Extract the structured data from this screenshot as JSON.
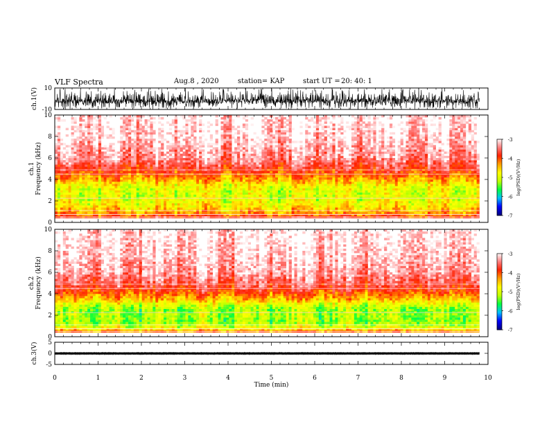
{
  "header": {
    "title": "VLF Spectra",
    "date": "Aug.8 , 2020",
    "station": "station= KAP",
    "start_label": "start UT =",
    "start_value": "20: 40: 1"
  },
  "colors": {
    "background": "#ffffff",
    "waveform": "#000000",
    "colormap": [
      "#000080",
      "#0000ff",
      "#00c0ff",
      "#00ff40",
      "#c0ff00",
      "#ffff00",
      "#ffa000",
      "#ff2000",
      "#ff8080",
      "#ffffff"
    ]
  },
  "chart_data": [
    {
      "type": "line",
      "panel": "ch1-waveform",
      "ylabel": "ch.1(V)",
      "ylim": [
        -10,
        10
      ],
      "y_ticks": [
        "10",
        "-10"
      ],
      "xlim": [
        0,
        10
      ],
      "x_unit": "min",
      "series": [
        {
          "x_range": [
            0,
            9.8
          ],
          "envelope_min": -10,
          "envelope_max": 10,
          "typical_min": -9,
          "typical_max": 8
        }
      ]
    },
    {
      "type": "heatmap",
      "panel": "ch1-spectrogram",
      "ylabel": "ch.1 Frequency (kHz)",
      "ylim": [
        0,
        10
      ],
      "y_ticks": [
        "0",
        "2",
        "4",
        "6",
        "8",
        "10"
      ],
      "xlim": [
        0,
        10
      ],
      "data_extent_x": [
        0,
        9.8
      ],
      "colorbar": {
        "label": "log(PSD)(V²/Hz)",
        "range": [
          -7,
          -3
        ],
        "ticks": [
          "-3",
          "-4",
          "-5",
          "-6",
          "-7"
        ]
      },
      "log_psd_profile": [
        {
          "f": 0.5,
          "v": -3.9
        },
        {
          "f": 1.0,
          "v": -4.4
        },
        {
          "f": 1.5,
          "v": -4.7
        },
        {
          "f": 2.0,
          "v": -4.9
        },
        {
          "f": 2.5,
          "v": -5.0
        },
        {
          "f": 3.0,
          "v": -5.0
        },
        {
          "f": 3.5,
          "v": -4.8
        },
        {
          "f": 4.0,
          "v": -4.4
        },
        {
          "f": 4.5,
          "v": -4.1
        },
        {
          "f": 5.0,
          "v": -3.8
        },
        {
          "f": 6.0,
          "v": -3.4
        },
        {
          "f": 8.0,
          "v": -3.1
        },
        {
          "f": 10.0,
          "v": -3.0
        }
      ]
    },
    {
      "type": "heatmap",
      "panel": "ch2-spectrogram",
      "ylabel": "ch.2 Frequency (kHz)",
      "ylim": [
        0,
        10
      ],
      "y_ticks": [
        "0",
        "2",
        "4",
        "6",
        "8",
        "10"
      ],
      "xlim": [
        0,
        10
      ],
      "data_extent_x": [
        0,
        9.8
      ],
      "colorbar": {
        "label": "log(PSD)(V²/Hz)",
        "range": [
          -7,
          -3
        ],
        "ticks": [
          "-3",
          "-4",
          "-5",
          "-6",
          "-7"
        ]
      },
      "log_psd_profile": [
        {
          "f": 0.5,
          "v": -4.2
        },
        {
          "f": 1.0,
          "v": -5.1
        },
        {
          "f": 1.5,
          "v": -5.3
        },
        {
          "f": 2.0,
          "v": -5.2
        },
        {
          "f": 2.5,
          "v": -5.3
        },
        {
          "f": 3.0,
          "v": -5.0
        },
        {
          "f": 3.5,
          "v": -4.5
        },
        {
          "f": 4.0,
          "v": -4.1
        },
        {
          "f": 4.5,
          "v": -3.8
        },
        {
          "f": 5.0,
          "v": -3.6
        },
        {
          "f": 6.0,
          "v": -3.3
        },
        {
          "f": 8.0,
          "v": -3.1
        },
        {
          "f": 10.0,
          "v": -3.0
        }
      ]
    },
    {
      "type": "line",
      "panel": "ch3-waveform",
      "ylabel": "ch.3(V)",
      "ylim": [
        -5,
        5
      ],
      "y_ticks": [
        "5",
        "0",
        "-5"
      ],
      "xlim": [
        0,
        10
      ],
      "x_ticks": [
        "0",
        "1",
        "2",
        "3",
        "4",
        "5",
        "6",
        "7",
        "8",
        "9",
        "10"
      ],
      "xlabel": "Time (min)",
      "series": [
        {
          "x_range": [
            0,
            9.8
          ],
          "band_min": -0.5,
          "band_max": 0.4
        }
      ]
    }
  ]
}
